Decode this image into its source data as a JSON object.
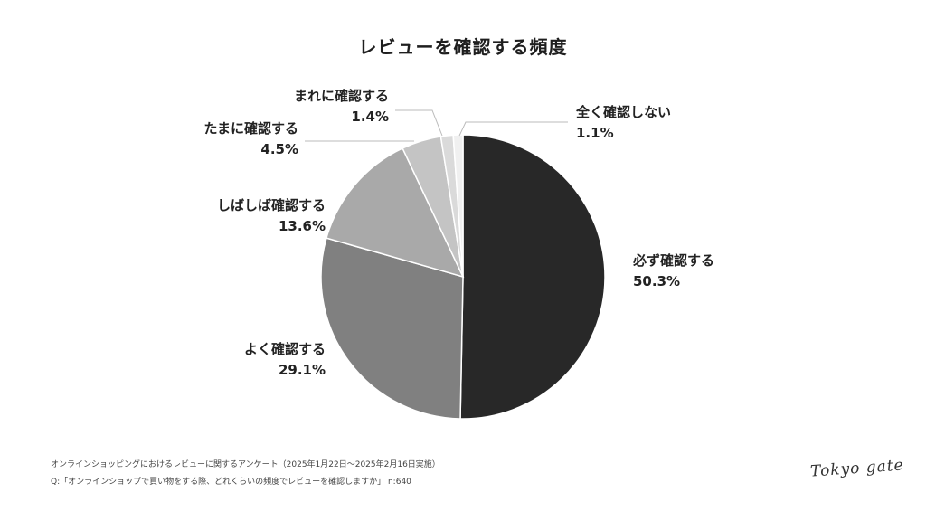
{
  "chart_data": {
    "type": "pie",
    "title": "レビューを確認する頻度",
    "slices": [
      {
        "label": "必ず確認する",
        "value": 50.3,
        "value_label": "50.3%",
        "color": "#282828"
      },
      {
        "label": "よく確認する",
        "value": 29.1,
        "value_label": "29.1%",
        "color": "#808080"
      },
      {
        "label": "しばしば確認する",
        "value": 13.6,
        "value_label": "13.6%",
        "color": "#a9a9a9"
      },
      {
        "label": "たまに確認する",
        "value": 4.5,
        "value_label": "4.5%",
        "color": "#c4c4c4"
      },
      {
        "label": "まれに確認する",
        "value": 1.4,
        "value_label": "1.4%",
        "color": "#dadada"
      },
      {
        "label": "全く確認しない",
        "value": 1.1,
        "value_label": "1.1%",
        "color": "#f0f0f0"
      }
    ]
  },
  "footer": {
    "survey": "オンラインショッピングにおけるレビューに関するアンケート（2025年1月22日～2025年2月16日実施）",
    "question": "Q:「オンラインショップで買い物をする際、どれくらいの頻度でレビューを確認しますか」 n:640"
  },
  "logo": "Tokyo gate"
}
